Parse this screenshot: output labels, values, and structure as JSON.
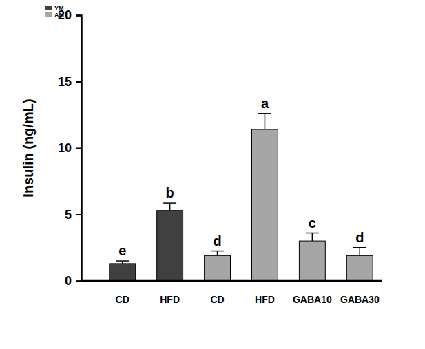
{
  "chart_data": {
    "type": "bar",
    "y_label": "Insulin (ng/mL)",
    "categories": [
      "CD",
      "HFD",
      "CD",
      "HFD",
      "GABA10",
      "GABA30"
    ],
    "series": [
      {
        "name": "YM",
        "color": "#404040",
        "values": [
          1.3,
          5.3,
          null,
          null,
          null,
          null
        ],
        "errors": [
          0.2,
          0.55,
          null,
          null,
          null,
          null
        ]
      },
      {
        "name": "AM",
        "color": "#a6a6a6",
        "values": [
          null,
          null,
          1.9,
          11.4,
          3.0,
          1.9
        ],
        "errors": [
          null,
          null,
          0.35,
          1.2,
          0.6,
          0.6
        ]
      }
    ],
    "annotations": [
      "e",
      "b",
      "d",
      "a",
      "c",
      "d"
    ],
    "ylim": [
      0,
      20
    ],
    "yticks": [
      0,
      5,
      10,
      15,
      20
    ],
    "grid": false,
    "legend": "upper left"
  }
}
